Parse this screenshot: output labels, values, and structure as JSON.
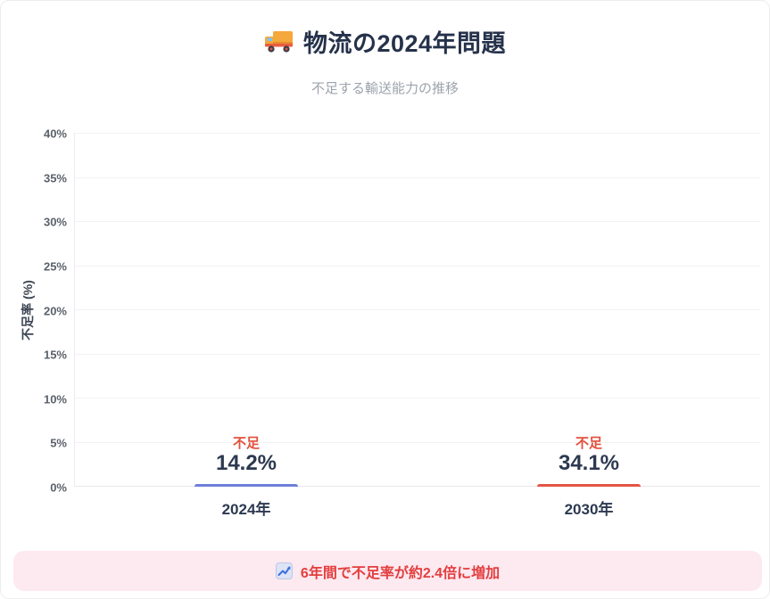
{
  "header": {
    "title": "物流の2024年問題",
    "subtitle": "不足する輸送能力の推移"
  },
  "chart_data": {
    "type": "bar",
    "title": "物流の2024年問題",
    "subtitle": "不足する輸送能力の推移",
    "categories": [
      "2024年",
      "2030年"
    ],
    "values": [
      14.2,
      34.1
    ],
    "value_labels": [
      "14.2%",
      "34.1%"
    ],
    "bar_badges": [
      "不足",
      "不足"
    ],
    "bar_colors": [
      "#8397ea",
      "#ec7164"
    ],
    "bar_border_colors": [
      "#6d7fd9",
      "#e25544"
    ],
    "ylabel": "不足率 (%)",
    "xlabel": "",
    "ylim": [
      0,
      40
    ],
    "yticks": [
      0,
      5,
      10,
      15,
      20,
      25,
      30,
      35,
      40
    ],
    "ytick_labels_top_to_bottom": [
      "40%",
      "35%",
      "30%",
      "25%",
      "20%",
      "15%",
      "10%",
      "5%",
      "0%"
    ],
    "grid": true,
    "legend": false
  },
  "footer": {
    "note": "6年間で不足率が約2.4倍に増加",
    "bg_color": "#fde9f0",
    "text_color": "#e33e3e"
  }
}
